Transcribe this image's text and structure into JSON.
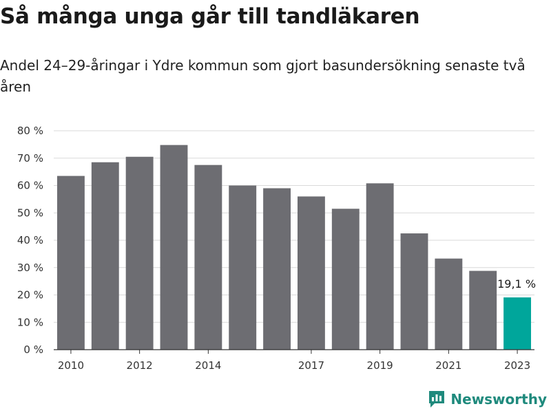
{
  "title": "Så många unga går till tandläkaren",
  "subtitle": "Andel 24–29-åringar i Ydre kommun som gjort basundersökning senaste två åren",
  "brand": {
    "name": "Newsworthy",
    "icon": "newsworthy-logo-icon",
    "color": "#1f8a7d"
  },
  "colors": {
    "bar": "#6d6d72",
    "highlight": "#00a69b",
    "grid": "#d9d9d9",
    "axis": "#333333"
  },
  "chart_data": {
    "type": "bar",
    "x": [
      2010,
      2011,
      2012,
      2013,
      2014,
      2015,
      2016,
      2017,
      2018,
      2019,
      2020,
      2021,
      2022,
      2023
    ],
    "values": [
      63.5,
      68.5,
      70.5,
      74.8,
      67.5,
      60,
      59,
      56,
      51.5,
      60.8,
      42.5,
      33.3,
      28.8,
      19.1
    ],
    "x_tick_labels": [
      "2010",
      "2012",
      "2014",
      "2017",
      "2019",
      "2021",
      "2023"
    ],
    "y_ticks": [
      0,
      10,
      20,
      30,
      40,
      50,
      60,
      70,
      80
    ],
    "y_tick_labels": [
      "0 %",
      "10 %",
      "20 %",
      "30 %",
      "40 %",
      "50 %",
      "60 %",
      "70 %",
      "80 %"
    ],
    "ylim": [
      0,
      80
    ],
    "grid": true,
    "highlight_index": 13,
    "annotations": [
      {
        "x": 2023,
        "text": "19,1 %"
      }
    ]
  }
}
